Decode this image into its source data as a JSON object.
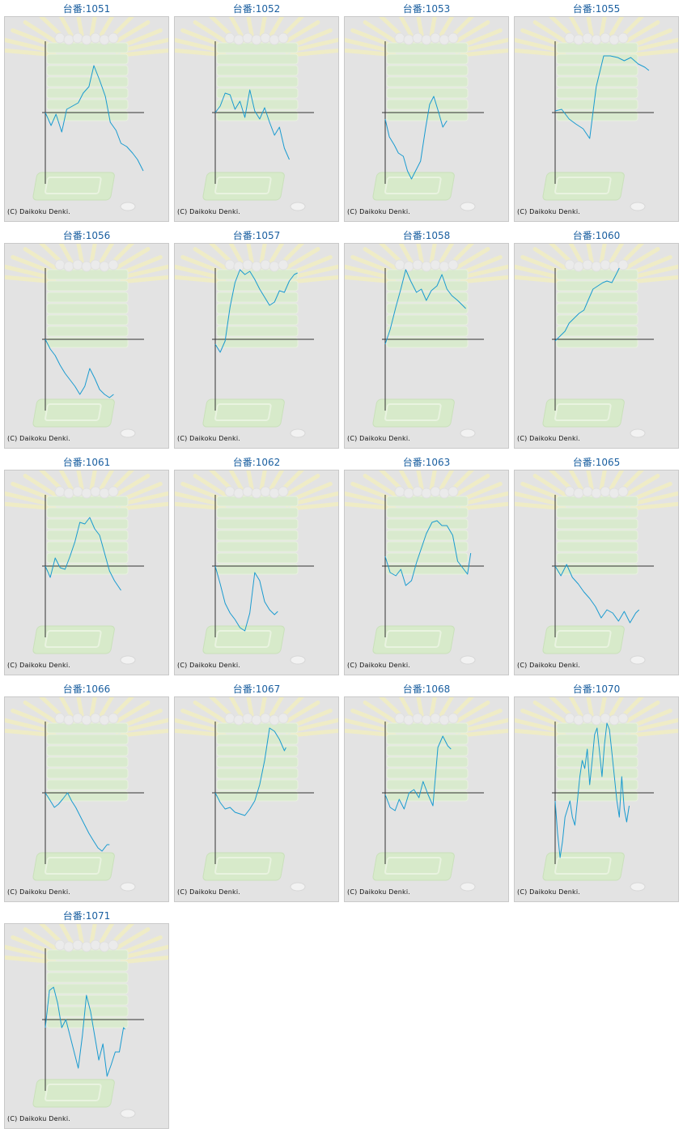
{
  "title_prefix": "台番:",
  "copyright": "(C) Daikoku Denki.",
  "colors": {
    "line": "#1a9bd0",
    "axis": "#333333",
    "panel_bg": "#e3e3e3",
    "title": "#1a5fa0"
  },
  "chart_data": [
    {
      "type": "line",
      "machine": "1051",
      "x": [
        0,
        7,
        13,
        20,
        26,
        33,
        40,
        46,
        53,
        59,
        66,
        73,
        79,
        86,
        92,
        99,
        106,
        112,
        119
      ],
      "values": [
        0,
        -16,
        -2,
        -24,
        4,
        8,
        12,
        24,
        32,
        58,
        40,
        20,
        -12,
        -22,
        -38,
        -42,
        -50,
        -58,
        -72
      ]
    },
    {
      "type": "line",
      "machine": "1052",
      "x": [
        0,
        6,
        12,
        18,
        24,
        30,
        36,
        42,
        48,
        54,
        60,
        66,
        72,
        78,
        84,
        90
      ],
      "values": [
        0,
        8,
        24,
        22,
        4,
        14,
        -6,
        28,
        2,
        -8,
        6,
        -12,
        -28,
        -18,
        -44,
        -58
      ]
    },
    {
      "type": "line",
      "machine": "1053",
      "x": [
        0,
        5,
        11,
        16,
        22,
        27,
        32,
        38,
        43,
        49,
        54,
        59,
        65,
        70,
        75
      ],
      "values": [
        -8,
        -30,
        -40,
        -50,
        -54,
        -72,
        -82,
        -70,
        -60,
        -20,
        10,
        20,
        0,
        -18,
        -10
      ]
    },
    {
      "type": "line",
      "machine": "1055",
      "x": [
        0,
        8,
        17,
        25,
        34,
        42,
        50,
        59,
        67,
        76,
        84,
        92,
        101,
        109,
        114
      ],
      "values": [
        2,
        4,
        -8,
        -14,
        -20,
        -32,
        32,
        70,
        70,
        68,
        64,
        68,
        60,
        56,
        52
      ]
    },
    {
      "type": "line",
      "machine": "1056",
      "x": [
        0,
        6,
        12,
        18,
        24,
        30,
        36,
        42,
        48,
        54,
        60,
        66,
        72,
        78,
        83
      ],
      "values": [
        0,
        -12,
        -20,
        -32,
        -42,
        -50,
        -58,
        -68,
        -58,
        -36,
        -48,
        -62,
        -68,
        -72,
        -68
      ]
    },
    {
      "type": "line",
      "machine": "1057",
      "x": [
        0,
        6,
        12,
        18,
        24,
        30,
        36,
        42,
        48,
        54,
        60,
        66,
        72,
        78,
        84,
        90,
        96,
        100
      ],
      "values": [
        -6,
        -16,
        -2,
        40,
        70,
        86,
        80,
        84,
        74,
        62,
        52,
        42,
        46,
        60,
        58,
        72,
        80,
        82
      ]
    },
    {
      "type": "line",
      "machine": "1058",
      "x": [
        0,
        6,
        13,
        19,
        25,
        31,
        38,
        44,
        50,
        56,
        63,
        69,
        75,
        81,
        88,
        94,
        98
      ],
      "values": [
        -6,
        12,
        40,
        62,
        86,
        72,
        58,
        62,
        48,
        60,
        66,
        80,
        62,
        54,
        48,
        42,
        38
      ]
    },
    {
      "type": "line",
      "machine": "1060",
      "x": [
        0,
        6,
        12,
        17,
        23,
        29,
        35,
        40,
        46,
        52,
        58,
        63,
        69,
        75,
        78
      ],
      "values": [
        -2,
        4,
        10,
        20,
        26,
        32,
        36,
        48,
        62,
        66,
        70,
        72,
        70,
        82,
        88
      ]
    },
    {
      "type": "line",
      "machine": "1061",
      "x": [
        0,
        6,
        12,
        18,
        24,
        30,
        36,
        42,
        48,
        54,
        60,
        66,
        72,
        78,
        84,
        92
      ],
      "values": [
        0,
        -14,
        10,
        -2,
        -4,
        12,
        30,
        54,
        52,
        60,
        46,
        38,
        16,
        -6,
        -18,
        -30
      ]
    },
    {
      "type": "line",
      "machine": "1062",
      "x": [
        0,
        6,
        12,
        18,
        24,
        30,
        36,
        42,
        48,
        54,
        60,
        66,
        72,
        76
      ],
      "values": [
        0,
        -22,
        -46,
        -58,
        -66,
        -76,
        -80,
        -58,
        -8,
        -18,
        -44,
        -54,
        -60,
        -56
      ]
    },
    {
      "type": "line",
      "machine": "1063",
      "x": [
        0,
        6,
        13,
        19,
        25,
        32,
        38,
        44,
        50,
        57,
        63,
        69,
        75,
        82,
        88,
        94,
        100,
        104
      ],
      "values": [
        12,
        -8,
        -12,
        -4,
        -24,
        -18,
        4,
        22,
        40,
        54,
        56,
        50,
        50,
        38,
        6,
        -2,
        -10,
        16
      ]
    },
    {
      "type": "line",
      "machine": "1065",
      "x": [
        0,
        7,
        14,
        21,
        28,
        35,
        42,
        49,
        56,
        63,
        70,
        77,
        84,
        91,
        98,
        102
      ],
      "values": [
        0,
        -12,
        2,
        -14,
        -22,
        -32,
        -40,
        -50,
        -64,
        -54,
        -58,
        -68,
        -56,
        -70,
        -58,
        -54
      ]
    },
    {
      "type": "line",
      "machine": "1066",
      "x": [
        0,
        5,
        11,
        16,
        21,
        27,
        32,
        37,
        43,
        48,
        53,
        59,
        64,
        69,
        75,
        78
      ],
      "values": [
        0,
        -8,
        -18,
        -14,
        -8,
        0,
        -10,
        -18,
        -30,
        -40,
        -50,
        -60,
        -68,
        -72,
        -64,
        -64
      ]
    },
    {
      "type": "line",
      "machine": "1067",
      "x": [
        0,
        6,
        12,
        18,
        24,
        30,
        36,
        42,
        48,
        54,
        60,
        66,
        72,
        78,
        84,
        86
      ],
      "values": [
        0,
        -12,
        -20,
        -18,
        -24,
        -26,
        -28,
        -20,
        -10,
        10,
        40,
        80,
        76,
        66,
        52,
        56
      ]
    },
    {
      "type": "line",
      "machine": "1068",
      "x": [
        0,
        6,
        12,
        17,
        23,
        29,
        35,
        41,
        46,
        52,
        58,
        64,
        70,
        76,
        80
      ],
      "values": [
        -2,
        -18,
        -22,
        -8,
        -20,
        0,
        4,
        -6,
        14,
        -2,
        -16,
        56,
        70,
        58,
        54
      ]
    },
    {
      "type": "line",
      "machine": "1070",
      "x": [
        0,
        3,
        6,
        9,
        12,
        15,
        18,
        21,
        24,
        27,
        30,
        33,
        36,
        39,
        42,
        45,
        48,
        51,
        54,
        57,
        60,
        63,
        66,
        69,
        72,
        75,
        78,
        81,
        84,
        87,
        90
      ],
      "values": [
        -10,
        -50,
        -80,
        -60,
        -30,
        -20,
        -10,
        -30,
        -40,
        -10,
        20,
        40,
        30,
        54,
        10,
        40,
        72,
        80,
        50,
        20,
        60,
        86,
        78,
        50,
        20,
        -10,
        -30,
        20,
        -20,
        -36,
        -16
      ]
    },
    {
      "type": "line",
      "machine": "1071",
      "x": [
        0,
        5,
        10,
        15,
        20,
        25,
        30,
        35,
        40,
        45,
        50,
        55,
        60,
        65,
        70,
        75,
        80,
        85,
        90,
        95,
        97
      ],
      "values": [
        -10,
        36,
        40,
        20,
        -10,
        0,
        -20,
        -40,
        -60,
        -20,
        30,
        10,
        -20,
        -50,
        -30,
        -70,
        -56,
        -40,
        -40,
        -10,
        -12
      ]
    }
  ]
}
